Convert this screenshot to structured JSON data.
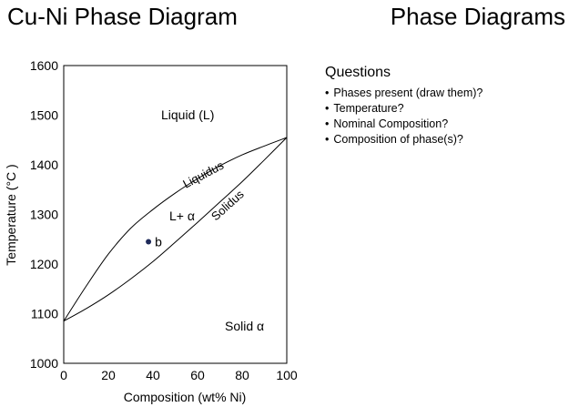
{
  "header": {
    "title_left": "Cu-Ni Phase Diagram",
    "title_right": "Phase Diagrams"
  },
  "questions": {
    "heading": "Questions",
    "items": [
      "Phases present (draw them)?",
      "Temperature?",
      "Nominal Composition?",
      "Composition of phase(s)?"
    ]
  },
  "diagram": {
    "xlabel": "Composition (wt% Ni)",
    "ylabel": "Temperature (°C )",
    "xlim": [
      0,
      100
    ],
    "ylim": [
      1000,
      1600
    ],
    "x_ticks": [
      "0",
      "20",
      "40",
      "60",
      "80",
      "100"
    ],
    "y_ticks": [
      "1000",
      "1100",
      "1200",
      "1300",
      "1400",
      "1500",
      "1600"
    ],
    "x_tick_values": [
      0,
      20,
      40,
      60,
      80,
      100
    ],
    "y_tick_values": [
      1000,
      1100,
      1200,
      1300,
      1400,
      1500,
      1600
    ],
    "regions": {
      "liquid": "Liquid (L)",
      "two_phase": "L+ α",
      "solid": "Solid α"
    },
    "curves": {
      "liquidus_label": "Liquidus",
      "solidus_label": "Solidus",
      "liquidus": [
        [
          0,
          1085
        ],
        [
          10,
          1155
        ],
        [
          20,
          1220
        ],
        [
          30,
          1272
        ],
        [
          40,
          1310
        ],
        [
          50,
          1343
        ],
        [
          60,
          1372
        ],
        [
          70,
          1398
        ],
        [
          80,
          1420
        ],
        [
          90,
          1438
        ],
        [
          100,
          1455
        ]
      ],
      "solidus": [
        [
          0,
          1085
        ],
        [
          10,
          1110
        ],
        [
          20,
          1138
        ],
        [
          30,
          1170
        ],
        [
          40,
          1205
        ],
        [
          50,
          1244
        ],
        [
          60,
          1284
        ],
        [
          70,
          1325
        ],
        [
          80,
          1366
        ],
        [
          90,
          1410
        ],
        [
          100,
          1455
        ]
      ]
    },
    "point": {
      "label": "b",
      "x": 38,
      "y": 1245
    },
    "colors": {
      "point": "#1f2a5a",
      "line": "#000000"
    }
  }
}
